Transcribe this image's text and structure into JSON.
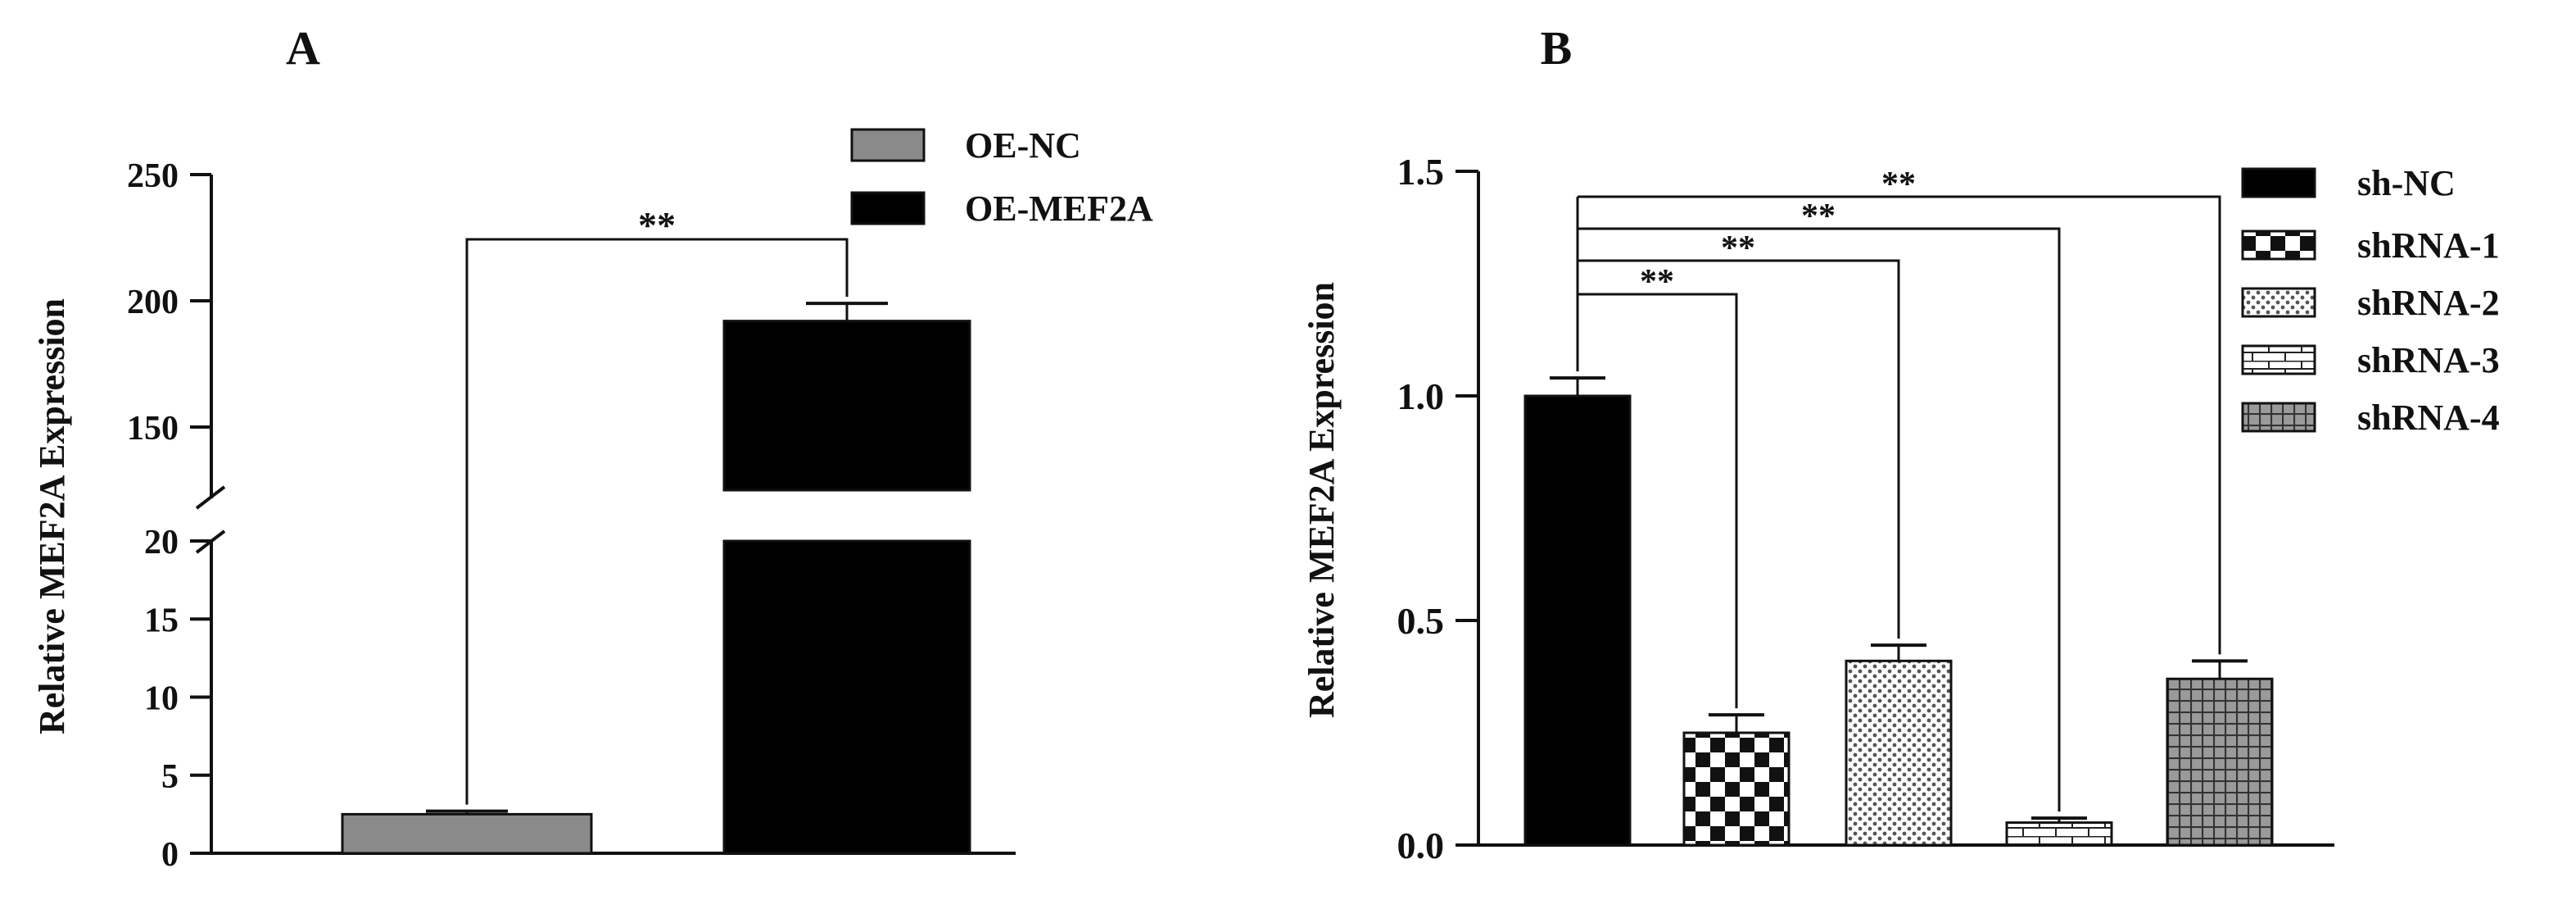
{
  "panels": [
    {
      "label": "A",
      "chart_data": {
        "type": "bar",
        "broken_axis": true,
        "categories": [
          "OE-NC",
          "OE-MEF2A"
        ],
        "values": [
          2.5,
          192
        ],
        "errors": [
          0.2,
          7
        ],
        "ylabel": "Relative MEF2A Expression",
        "xlabel": "",
        "y_segments": [
          {
            "ylim": [
              0,
              20
            ],
            "ticks": [
              "0",
              "5",
              "10",
              "15",
              "20"
            ]
          },
          {
            "ylim": [
              125,
              250
            ],
            "ticks": [
              "150",
              "200",
              "250"
            ]
          }
        ],
        "legend": {
          "placement": "top-right",
          "items": [
            {
              "label": "OE-NC",
              "pattern": "solid-gray"
            },
            {
              "label": "OE-MEF2A",
              "pattern": "solid-black"
            }
          ]
        },
        "significance": [
          {
            "from": 0,
            "to": 1,
            "text": "**"
          }
        ]
      }
    },
    {
      "label": "B",
      "chart_data": {
        "type": "bar",
        "categories": [
          "sh-NC",
          "shRNA-1",
          "shRNA-2",
          "shRNA-3",
          "shRNA-4"
        ],
        "values": [
          1.0,
          0.25,
          0.41,
          0.05,
          0.37
        ],
        "errors": [
          0.04,
          0.04,
          0.035,
          0.01,
          0.04
        ],
        "ylabel": "Relative MEF2A Expression",
        "xlabel": "",
        "ylim": [
          0,
          1.5
        ],
        "ticks": [
          "0.0",
          "0.5",
          "1.0",
          "1.5"
        ],
        "legend": {
          "placement": "top-right",
          "items": [
            {
              "label": "sh-NC",
              "pattern": "solid-black"
            },
            {
              "label": "shRNA-1",
              "pattern": "checker"
            },
            {
              "label": "shRNA-2",
              "pattern": "dots"
            },
            {
              "label": "shRNA-3",
              "pattern": "bricks"
            },
            {
              "label": "shRNA-4",
              "pattern": "grid"
            }
          ]
        },
        "significance": [
          {
            "from": 0,
            "to": 1,
            "text": "**"
          },
          {
            "from": 0,
            "to": 2,
            "text": "**"
          },
          {
            "from": 0,
            "to": 3,
            "text": "**"
          },
          {
            "from": 0,
            "to": 4,
            "text": "**"
          }
        ]
      }
    }
  ],
  "colors": {
    "black": "#000000",
    "gray": "#8a8a8a",
    "axis": "#111111"
  }
}
